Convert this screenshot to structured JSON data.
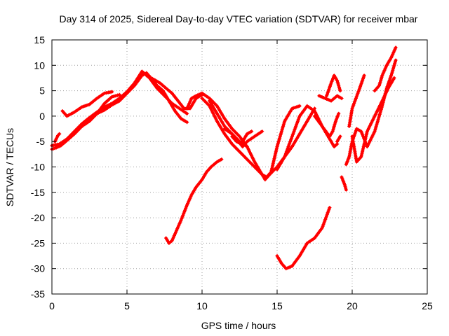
{
  "chart_data": {
    "type": "scatter",
    "title": "Day 314 of 2025, Sidereal Day-to-day VTEC variation (SDTVAR) for receiver mbar",
    "xlabel": "GPS time / hours",
    "ylabel": "SDTVAR / TECUs",
    "xlim": [
      0,
      25
    ],
    "ylim": [
      -35,
      15
    ],
    "x_ticks": [
      "0",
      "5",
      "10",
      "15",
      "20",
      "25"
    ],
    "y_ticks": [
      "15",
      "10",
      "5",
      "0",
      "-5",
      "-10",
      "-15",
      "-20",
      "-25",
      "-30",
      "-35"
    ],
    "grid": true,
    "legend": "none",
    "marker": "+",
    "series_color": "#ff0000",
    "series": [
      {
        "x": [
          0.0,
          0.3,
          0.6,
          1.0,
          1.5,
          2.0,
          2.5,
          3.0,
          3.5,
          4.0,
          4.5,
          5.0,
          5.5,
          6.0,
          6.3,
          6.6,
          7.0,
          7.4,
          7.8,
          8.2,
          8.6,
          9.0
        ],
        "y": [
          -6.5,
          -6.2,
          -5.8,
          -4.8,
          -3.5,
          -2.0,
          -0.5,
          0.5,
          1.2,
          2.2,
          3.0,
          4.5,
          6.0,
          8.0,
          8.5,
          7.5,
          6.0,
          5.0,
          3.0,
          1.0,
          -0.5,
          -1.2
        ]
      },
      {
        "x": [
          0.0,
          0.5,
          1.0,
          1.5,
          2.0,
          2.5,
          3.0,
          3.5,
          4.0,
          4.5,
          5.0,
          5.5,
          6.0,
          6.5,
          7.0,
          7.5,
          8.0,
          8.5,
          9.0
        ],
        "y": [
          -5.8,
          -5.5,
          -4.5,
          -3.0,
          -1.5,
          -0.3,
          0.8,
          1.8,
          2.5,
          3.5,
          4.8,
          6.5,
          8.8,
          7.5,
          5.5,
          4.0,
          2.5,
          1.5,
          0.5
        ]
      },
      {
        "x": [
          0.7,
          1.0,
          1.5,
          2.0,
          2.5,
          3.0,
          3.5,
          4.0
        ],
        "y": [
          1.0,
          0.0,
          0.8,
          1.8,
          2.3,
          3.5,
          4.5,
          4.8
        ]
      },
      {
        "x": [
          0.2,
          0.4,
          0.5
        ],
        "y": [
          -5.0,
          -3.8,
          -3.5
        ]
      },
      {
        "x": [
          1.0,
          1.5,
          2.0,
          2.5,
          3.0,
          3.5,
          4.0,
          4.5
        ],
        "y": [
          -4.5,
          -3.2,
          -2.0,
          -1.0,
          0.5,
          2.5,
          3.8,
          4.2
        ]
      },
      {
        "x": [
          6.3,
          6.8,
          7.2,
          7.6,
          8.0,
          8.4,
          8.8,
          9.2,
          9.6,
          10.0
        ],
        "y": [
          8.0,
          7.2,
          6.5,
          5.5,
          4.5,
          3.0,
          1.5,
          1.5,
          3.5,
          4.2
        ]
      },
      {
        "x": [
          9.0,
          9.3,
          9.6,
          10.0,
          10.5,
          11.0,
          11.5,
          12.0,
          12.5,
          13.0,
          13.5,
          14.0,
          14.2,
          14.5,
          15.0,
          15.5,
          16.0,
          16.5,
          17.0,
          17.5
        ],
        "y": [
          1.5,
          3.5,
          4.0,
          4.5,
          3.5,
          2.0,
          -0.5,
          -2.5,
          -4.0,
          -6.0,
          -9.0,
          -11.5,
          -12.5,
          -11.5,
          -10.0,
          -8.0,
          -6.0,
          -3.5,
          -1.0,
          1.5
        ]
      },
      {
        "x": [
          10.0,
          10.5,
          11.0,
          11.5,
          12.0,
          12.5,
          13.0,
          13.5,
          14.0,
          14.3,
          14.6,
          15.0,
          15.5,
          16.0,
          16.5
        ],
        "y": [
          3.5,
          2.0,
          -1.0,
          -3.5,
          -5.5,
          -7.0,
          -8.5,
          -10.0,
          -11.5,
          -12.0,
          -11.0,
          -6.0,
          -1.0,
          1.5,
          2.0
        ]
      },
      {
        "x": [
          10.5,
          11.0,
          11.5,
          12.0,
          12.5,
          13.0
        ],
        "y": [
          3.0,
          0.5,
          -2.0,
          -3.5,
          -5.0,
          -6.0
        ]
      },
      {
        "x": [
          11.5,
          12.0,
          12.3,
          12.7,
          13.0,
          13.5,
          14.0
        ],
        "y": [
          -2.5,
          -3.5,
          -4.5,
          -6.0,
          -5.0,
          -4.0,
          -3.0
        ]
      },
      {
        "x": [
          12.0,
          12.3,
          12.6,
          13.0,
          13.3
        ],
        "y": [
          -4.0,
          -5.0,
          -5.5,
          -3.5,
          -3.0
        ]
      },
      {
        "x": [
          7.6,
          7.8,
          8.0,
          8.3,
          8.6,
          9.0,
          9.3,
          9.6,
          10.0,
          10.3,
          10.6,
          11.0,
          11.3
        ],
        "y": [
          -24.0,
          -25.0,
          -24.5,
          -22.5,
          -20.5,
          -17.5,
          -15.5,
          -14.0,
          -12.5,
          -11.0,
          -10.0,
          -9.0,
          -8.5
        ]
      },
      {
        "x": [
          15.0,
          15.3,
          15.6,
          16.0,
          16.5,
          17.0,
          17.5,
          18.0,
          18.5
        ],
        "y": [
          -27.5,
          -29.0,
          -30.0,
          -29.5,
          -27.5,
          -25.0,
          -24.0,
          -22.0,
          -18.0
        ]
      },
      {
        "x": [
          15.0,
          15.5,
          16.0,
          16.5,
          17.0,
          17.5,
          18.0,
          18.5,
          18.8,
          19.0
        ],
        "y": [
          -10.5,
          -8.0,
          -4.0,
          0.0,
          2.0,
          1.0,
          -2.0,
          -4.5,
          -6.0,
          -5.5
        ]
      },
      {
        "x": [
          17.5,
          18.0,
          18.5,
          18.7,
          18.9,
          19.1
        ],
        "y": [
          0.0,
          -2.0,
          -4.0,
          -3.0,
          -1.0,
          0.5
        ]
      },
      {
        "x": [
          18.3,
          18.6,
          18.8,
          19.0,
          19.2
        ],
        "y": [
          4.0,
          6.5,
          8.0,
          7.0,
          5.0
        ]
      },
      {
        "x": [
          17.8,
          18.2,
          18.6,
          19.0,
          19.3
        ],
        "y": [
          4.0,
          3.5,
          3.0,
          4.0,
          3.5
        ]
      },
      {
        "x": [
          19.6,
          19.8,
          20.0,
          20.3,
          20.6,
          21.0,
          21.5,
          22.0,
          22.3,
          22.6,
          22.9
        ],
        "y": [
          -9.5,
          -8.0,
          -5.0,
          -2.5,
          -3.0,
          -6.0,
          -3.0,
          2.0,
          5.5,
          8.0,
          11.0
        ]
      },
      {
        "x": [
          20.0,
          20.3,
          20.6,
          21.0,
          21.5,
          22.0,
          22.4,
          22.8
        ],
        "y": [
          -4.0,
          -9.0,
          -8.0,
          -3.0,
          0.0,
          3.0,
          5.5,
          7.5
        ]
      },
      {
        "x": [
          19.8,
          20.0,
          20.5,
          20.8
        ],
        "y": [
          -2.0,
          1.5,
          5.5,
          8.0
        ]
      },
      {
        "x": [
          21.5,
          21.8,
          22.0,
          22.3,
          22.6,
          22.9
        ],
        "y": [
          5.0,
          6.0,
          8.0,
          10.0,
          11.5,
          13.5
        ]
      },
      {
        "x": [
          19.3,
          19.5,
          19.6
        ],
        "y": [
          -12.0,
          -13.5,
          -14.5
        ]
      },
      {
        "x": [
          19.0,
          19.2
        ],
        "y": [
          -5.0,
          -4.0
        ]
      }
    ]
  }
}
